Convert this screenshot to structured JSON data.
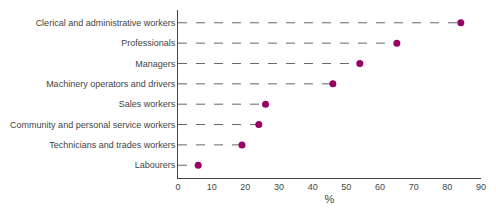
{
  "chart_data": {
    "type": "lollipop",
    "orientation": "horizontal",
    "categories": [
      "Clerical and administrative workers",
      "Professionals",
      "Managers",
      "Machinery operators and drivers",
      "Sales workers",
      "Community and personal service workers",
      "Technicians and trades workers",
      "Labourers"
    ],
    "values": [
      84,
      65,
      54,
      46,
      26,
      24,
      19,
      6
    ],
    "color": "#990066",
    "marker": "circle",
    "line_style": "dashed",
    "xlabel": "%",
    "xlim": [
      0,
      90
    ],
    "xticks": [
      0,
      10,
      20,
      30,
      40,
      50,
      60,
      70,
      80,
      90
    ],
    "grid": false
  }
}
